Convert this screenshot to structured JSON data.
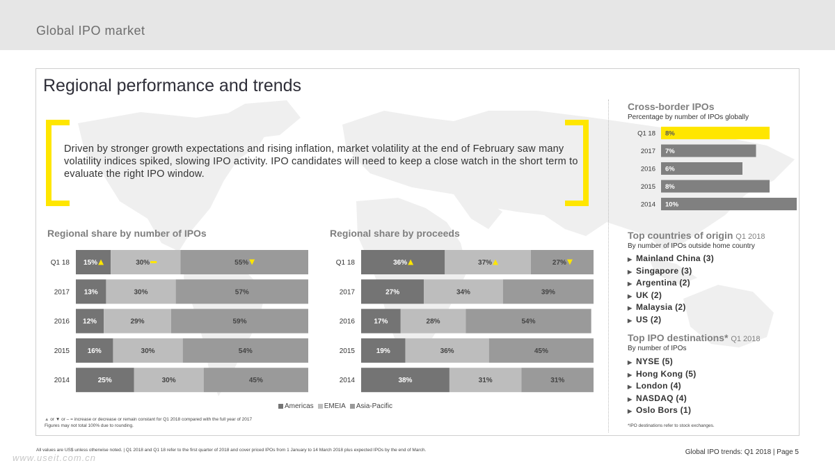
{
  "header": {
    "title": "Global IPO market"
  },
  "page": {
    "heading": "Regional performance and trends"
  },
  "quote": "Driven by stronger growth expectations and rising inflation, market volatility at the end of February saw many volatility indices spiked, slowing IPO activity. IPO candidates will need to keep a close watch in the short term to evaluate the right IPO window.",
  "colors": {
    "americas": "#747474",
    "emeia": "#bdbdbd",
    "asia_pacific": "#9a9a9a",
    "accent": "#ffe600",
    "crossborder": "#808080"
  },
  "legend": [
    "Americas",
    "EMEIA",
    "Asia-Pacific"
  ],
  "notes": {
    "indicator": "or ▼ or – = increase or decrease or remain constant for Q1 2018 compared with the full year of 2017",
    "rounding": "Figures may not total 100% due to rounding.",
    "ipo_destinations": "*IPO destinations refer to stock exchanges.",
    "footer": "All values are US$ unless otherwise noted.  |  Q1 2018 and Q1 18 refer to the first quarter of 2018 and cover priced IPOs from 1 January to 14 March 2018 plus expected IPOs by the end of March."
  },
  "cross_border": {
    "title": "Cross-border IPOs",
    "subtitle": "Percentage by number of IPOs globally"
  },
  "top_origin": {
    "title": "Top countries of origin",
    "period": "Q1 2018",
    "subtitle": "By number of IPOs outside home country",
    "items": [
      "Mainland China (3)",
      "Singapore (3)",
      "Argentina (2)",
      "UK (2)",
      "Malaysia (2)",
      "US (2)"
    ]
  },
  "top_destinations": {
    "title": "Top IPO destinations*",
    "period": "Q1 2018",
    "subtitle": "By number of IPOs",
    "items": [
      "NYSE (5)",
      "Hong Kong (5)",
      "London (4)",
      "NASDAQ (4)",
      "Oslo Bors (1)"
    ]
  },
  "footer": {
    "page_label": "Global IPO trends: Q1 2018  |  Page 5",
    "watermark": "www.useit.com.cn"
  },
  "chart_data": [
    {
      "type": "bar",
      "stacked": true,
      "orientation": "horizontal",
      "title": "Regional share by number of IPOs",
      "categories": [
        "Q1 18",
        "2017",
        "2016",
        "2015",
        "2014"
      ],
      "series": [
        {
          "name": "Americas",
          "values": [
            15,
            13,
            12,
            16,
            25
          ]
        },
        {
          "name": "EMEIA",
          "values": [
            30,
            30,
            29,
            30,
            30
          ]
        },
        {
          "name": "Asia-Pacific",
          "values": [
            55,
            57,
            59,
            54,
            45
          ]
        }
      ],
      "q1_indicators": [
        "up",
        "flat",
        "down"
      ],
      "xlim": [
        0,
        100
      ]
    },
    {
      "type": "bar",
      "stacked": true,
      "orientation": "horizontal",
      "title": "Regional share by proceeds",
      "categories": [
        "Q1 18",
        "2017",
        "2016",
        "2015",
        "2014"
      ],
      "series": [
        {
          "name": "Americas",
          "values": [
            36,
            27,
            17,
            19,
            38
          ]
        },
        {
          "name": "EMEIA",
          "values": [
            37,
            34,
            28,
            36,
            31
          ]
        },
        {
          "name": "Asia-Pacific",
          "values": [
            27,
            39,
            54,
            45,
            31
          ]
        }
      ],
      "q1_indicators": [
        "up",
        "up",
        "down"
      ],
      "xlim": [
        0,
        100
      ]
    },
    {
      "type": "bar",
      "orientation": "horizontal",
      "title": "Cross-border IPOs",
      "categories": [
        "Q1 18",
        "2017",
        "2016",
        "2015",
        "2014"
      ],
      "values": [
        8,
        7,
        6,
        8,
        10
      ],
      "highlight": "Q1 18",
      "xlim": [
        0,
        10
      ]
    }
  ]
}
